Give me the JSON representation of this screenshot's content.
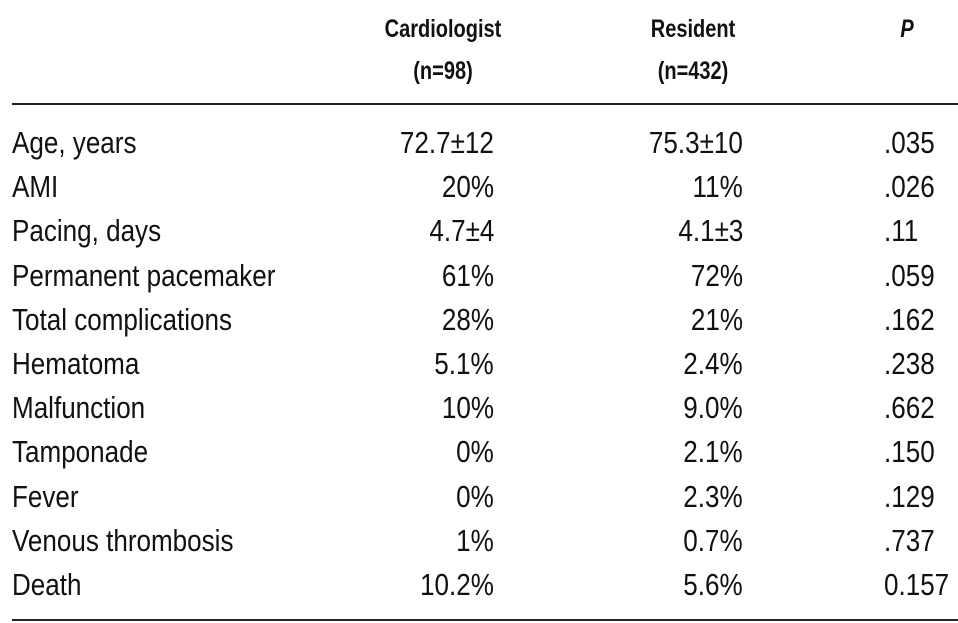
{
  "table": {
    "header": [
      {
        "lines": [
          "Cardiologist",
          "(n=98)"
        ]
      },
      {
        "lines": [
          "Resident",
          "(n=432)"
        ]
      },
      {
        "lines": [
          "P"
        ]
      }
    ],
    "rows": [
      [
        "Age, years",
        "72.7±12",
        "75.3±10",
        ".035"
      ],
      [
        "AMI",
        "20%",
        "11%",
        ".026"
      ],
      [
        "Pacing, days",
        "4.7±4",
        "4.1±3",
        ".11"
      ],
      [
        "Permanent pacemaker",
        "61%",
        "72%",
        ".059"
      ],
      [
        "Total complications",
        "28%",
        "21%",
        ".162"
      ],
      [
        "Hematoma",
        "5.1%",
        "2.4%",
        ".238"
      ],
      [
        "Malfunction",
        "10%",
        "9.0%",
        ".662"
      ],
      [
        "Tamponade",
        "0%",
        "2.1%",
        ".150"
      ],
      [
        "Fever",
        "0%",
        "2.3%",
        ".129"
      ],
      [
        "Venous thrombosis",
        "1%",
        "0.7%",
        ".737"
      ],
      [
        "Death",
        "10.2%",
        "5.6%",
        "0.157"
      ]
    ]
  }
}
